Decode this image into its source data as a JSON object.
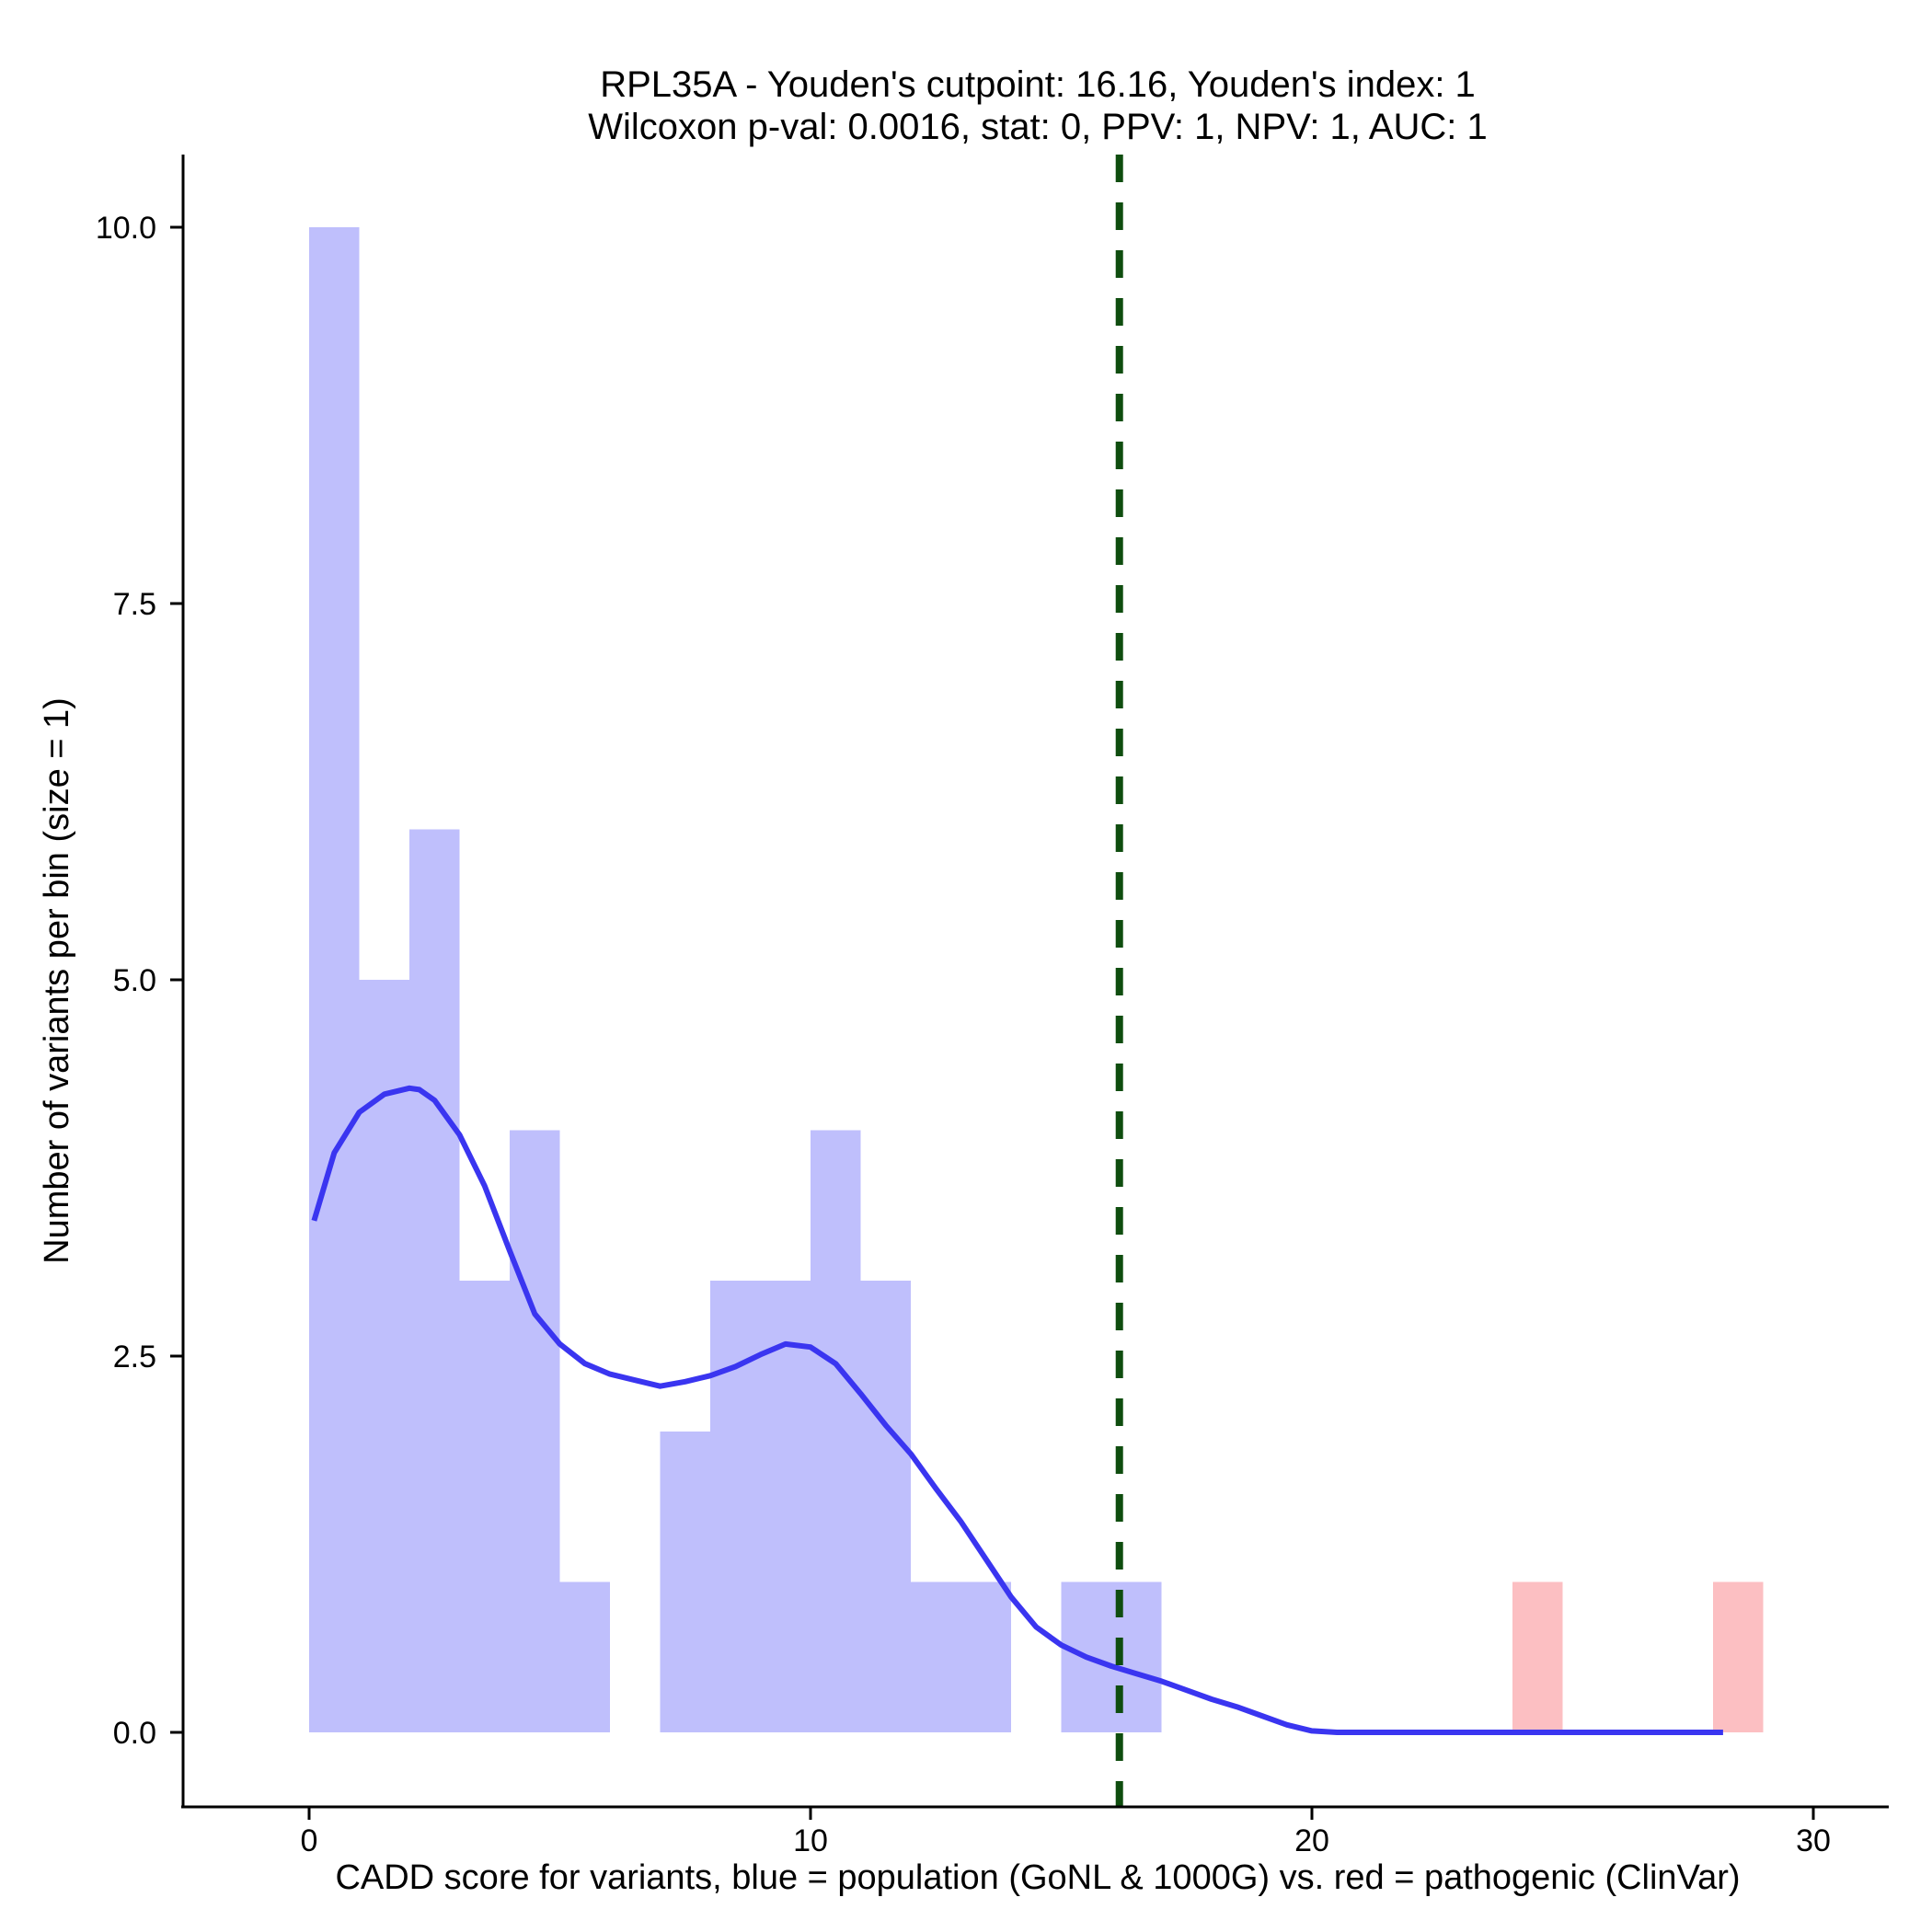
{
  "chart_data": {
    "type": "histogram",
    "title": "RPL35A - Youden's cutpoint: 16.16, Youden's index: 1",
    "subtitle": "Wilcoxon p-val: 0.0016, stat: 0, PPV: 1, NPV: 1, AUC: 1",
    "xlabel": "CADD score for variants, blue = population (GoNL & 1000G) vs. red = pathogenic (ClinVar)",
    "ylabel": "Number of variants per bin (size = 1)",
    "xlim": [
      -2.5,
      31.5
    ],
    "ylim": [
      -0.5,
      10.5
    ],
    "x_ticks": [
      0,
      10,
      20,
      30
    ],
    "x_tick_labels": [
      "0",
      "10",
      "20",
      "30"
    ],
    "y_ticks": [
      0,
      2.5,
      5,
      7.5,
      10
    ],
    "y_tick_labels": [
      "0.0",
      "2.5",
      "5.0",
      "7.5",
      "10.0"
    ],
    "bin_width": 1,
    "series": [
      {
        "name": "population (GoNL & 1000G)",
        "color": "#bfbffc",
        "bin_starts": [
          0,
          1,
          2,
          3,
          4,
          5,
          7,
          8,
          9,
          10,
          11,
          12,
          13,
          15,
          16
        ],
        "counts": [
          10,
          5,
          6,
          3,
          4,
          1,
          2,
          3,
          3,
          4,
          3,
          1,
          1,
          1,
          1
        ]
      },
      {
        "name": "pathogenic (ClinVar)",
        "color": "#fcbfc2",
        "bin_starts": [
          24,
          28
        ],
        "counts": [
          1,
          1
        ]
      }
    ],
    "density_line": {
      "name": "population density (scaled)",
      "color": "#3a35f0",
      "x": [
        0.1,
        0.5,
        1.0,
        1.5,
        2.0,
        2.2,
        2.5,
        3.0,
        3.5,
        4.0,
        4.5,
        5.0,
        5.5,
        6.0,
        6.5,
        7.0,
        7.5,
        8.0,
        8.5,
        9.0,
        9.5,
        10.0,
        10.5,
        11.0,
        11.5,
        12.0,
        12.5,
        13.0,
        13.5,
        14.0,
        14.5,
        15.0,
        15.5,
        16.0,
        16.5,
        17.0,
        17.5,
        18.0,
        18.5,
        19.0,
        19.5,
        20.0,
        20.5,
        22,
        24,
        26,
        28.2
      ],
      "y": [
        3.4,
        3.85,
        4.12,
        4.24,
        4.28,
        4.27,
        4.2,
        3.97,
        3.63,
        3.2,
        2.78,
        2.58,
        2.45,
        2.38,
        2.34,
        2.3,
        2.33,
        2.37,
        2.43,
        2.51,
        2.58,
        2.56,
        2.45,
        2.25,
        2.04,
        1.85,
        1.62,
        1.4,
        1.15,
        0.9,
        0.7,
        0.58,
        0.5,
        0.44,
        0.39,
        0.34,
        0.28,
        0.22,
        0.17,
        0.11,
        0.05,
        0.01,
        0.0,
        0.0,
        0.0,
        0.0,
        0.0
      ]
    },
    "cutpoint": {
      "x": 16.16,
      "color": "#0f4d0f",
      "style": "dashed"
    }
  }
}
